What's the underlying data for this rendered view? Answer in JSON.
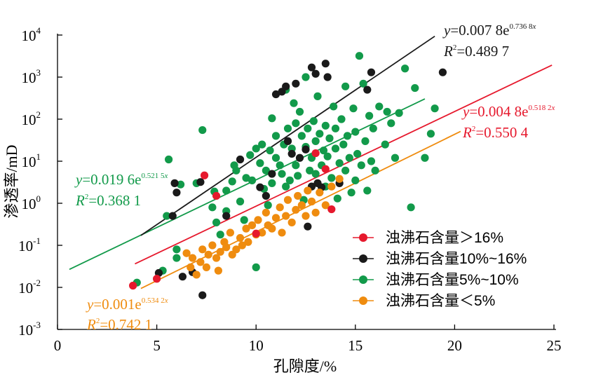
{
  "chart_data": {
    "type": "scatter",
    "x_axis": {
      "label": "孔隙度/%",
      "range": [
        0,
        25
      ],
      "ticks": [
        "0",
        "5",
        "10",
        "15",
        "20",
        "25"
      ]
    },
    "y_axis": {
      "label": "渗透率/mD",
      "scale": "log",
      "range": [
        0.001,
        10000
      ],
      "tick_bases": [
        "10",
        "10",
        "10",
        "10",
        "10",
        "10",
        "10",
        "10"
      ],
      "tick_exponents": [
        "-3",
        "-2",
        "-1",
        "0",
        "1",
        "2",
        "3",
        "4"
      ]
    },
    "series": [
      {
        "name": "浊沸石含量＞16%",
        "color": "#e6192d",
        "points": [
          [
            3.8,
            0.011
          ],
          [
            5.0,
            0.016
          ],
          [
            7.4,
            4.6
          ],
          [
            8.0,
            1.5
          ],
          [
            10.0,
            0.19
          ],
          [
            13.0,
            15.5
          ],
          [
            13.5,
            6.5
          ],
          [
            13.8,
            0.72
          ]
        ],
        "fit": {
          "a": 0.0048,
          "b": 0.5182,
          "x_range": [
            3.9,
            24.9
          ],
          "eq_prefix": "y",
          "eq_main": "=0.004 8e",
          "eq_exp": "0.518 2",
          "eq_x": "x",
          "r2_prefix": "R",
          "r2_sup": "2",
          "r2_value": "=0.550 4"
        }
      },
      {
        "name": "浊沸石含量10%~16%",
        "color": "#1a1a1a",
        "points": [
          [
            5.1,
            0.022
          ],
          [
            5.8,
            0.5
          ],
          [
            5.9,
            3.0
          ],
          [
            6.0,
            1.8
          ],
          [
            6.3,
            0.018
          ],
          [
            6.8,
            0.023
          ],
          [
            7.2,
            3.2
          ],
          [
            7.3,
            0.0065
          ],
          [
            8.5,
            0.5
          ],
          [
            9.2,
            11
          ],
          [
            10.2,
            2.4
          ],
          [
            10.5,
            1.5
          ],
          [
            10.8,
            5
          ],
          [
            11.0,
            390
          ],
          [
            11.3,
            450
          ],
          [
            11.5,
            600
          ],
          [
            11.6,
            30
          ],
          [
            11.8,
            15
          ],
          [
            12.0,
            700
          ],
          [
            12.2,
            12
          ],
          [
            12.5,
            19
          ],
          [
            12.6,
            0.28
          ],
          [
            12.8,
            2.5
          ],
          [
            12.8,
            1700
          ],
          [
            13.0,
            1200
          ],
          [
            13.1,
            3.0
          ],
          [
            13.3,
            2.4
          ],
          [
            13.5,
            2100
          ],
          [
            13.6,
            1000
          ],
          [
            14.2,
            3.0
          ],
          [
            15.6,
            500
          ],
          [
            15.8,
            1300
          ],
          [
            19.4,
            1300
          ]
        ],
        "fit": {
          "a": 0.0078,
          "b": 0.7368,
          "x_range": [
            4.2,
            19.0
          ],
          "eq_prefix": "y",
          "eq_main": "=0.007 8e",
          "eq_exp": "0.736 8",
          "eq_x": "x",
          "r2_prefix": "R",
          "r2_sup": "2",
          "r2_value": "=0.489 7"
        }
      },
      {
        "name": "浊沸石含量5%~10%",
        "color": "#129a4a",
        "points": [
          [
            4.0,
            0.013
          ],
          [
            5.3,
            0.025
          ],
          [
            5.5,
            0.5
          ],
          [
            5.6,
            11
          ],
          [
            6.0,
            0.08
          ],
          [
            6.0,
            0.05
          ],
          [
            6.2,
            2.8
          ],
          [
            7.0,
            3.0
          ],
          [
            7.3,
            55
          ],
          [
            7.8,
            0.8
          ],
          [
            7.9,
            1.9
          ],
          [
            8.0,
            0.35
          ],
          [
            8.2,
            0.18
          ],
          [
            8.5,
            0.65
          ],
          [
            8.5,
            2.0
          ],
          [
            8.8,
            3.3
          ],
          [
            8.9,
            8.0
          ],
          [
            9.0,
            6.0
          ],
          [
            9.2,
            1.1
          ],
          [
            9.4,
            0.4
          ],
          [
            9.5,
            4.0
          ],
          [
            9.7,
            14
          ],
          [
            9.8,
            3.5
          ],
          [
            10.0,
            20
          ],
          [
            10.0,
            0.03
          ],
          [
            10.2,
            9
          ],
          [
            10.3,
            25
          ],
          [
            10.4,
            2.2
          ],
          [
            10.5,
            6
          ],
          [
            10.6,
            0.9
          ],
          [
            10.7,
            18
          ],
          [
            10.8,
            105
          ],
          [
            10.8,
            3
          ],
          [
            11.0,
            12
          ],
          [
            11.0,
            40
          ],
          [
            11.2,
            8
          ],
          [
            11.3,
            5
          ],
          [
            11.4,
            25
          ],
          [
            11.5,
            2.5
          ],
          [
            11.5,
            500
          ],
          [
            11.6,
            60
          ],
          [
            11.7,
            3.5
          ],
          [
            11.8,
            20
          ],
          [
            11.9,
            240
          ],
          [
            12.0,
            80
          ],
          [
            12.0,
            8
          ],
          [
            12.1,
            4.5
          ],
          [
            12.2,
            150
          ],
          [
            12.3,
            40
          ],
          [
            12.4,
            1.2
          ],
          [
            12.5,
            22
          ],
          [
            12.5,
            1000
          ],
          [
            12.6,
            60
          ],
          [
            12.7,
            6
          ],
          [
            12.8,
            12
          ],
          [
            12.9,
            90
          ],
          [
            13.0,
            30
          ],
          [
            13.0,
            5
          ],
          [
            13.1,
            350
          ],
          [
            13.2,
            45
          ],
          [
            13.3,
            8
          ],
          [
            13.4,
            18
          ],
          [
            13.5,
            70
          ],
          [
            13.5,
            2.5
          ],
          [
            13.6,
            13
          ],
          [
            13.7,
            35
          ],
          [
            13.8,
            4
          ],
          [
            13.9,
            200
          ],
          [
            14.0,
            20
          ],
          [
            14.0,
            60
          ],
          [
            14.1,
            1.3
          ],
          [
            14.2,
            9
          ],
          [
            14.3,
            100
          ],
          [
            14.4,
            25
          ],
          [
            14.5,
            6
          ],
          [
            14.5,
            600
          ],
          [
            14.6,
            40
          ],
          [
            14.7,
            12
          ],
          [
            14.8,
            1.8
          ],
          [
            14.9,
            180
          ],
          [
            15.0,
            50
          ],
          [
            15.0,
            3.5
          ],
          [
            15.1,
            15
          ],
          [
            15.2,
            3200
          ],
          [
            15.3,
            8
          ],
          [
            15.4,
            700
          ],
          [
            15.5,
            30
          ],
          [
            15.6,
            2.0
          ],
          [
            15.7,
            120
          ],
          [
            15.8,
            10
          ],
          [
            15.9,
            60
          ],
          [
            16.0,
            6
          ],
          [
            16.2,
            200
          ],
          [
            16.5,
            25
          ],
          [
            16.6,
            150
          ],
          [
            16.8,
            80
          ],
          [
            17.0,
            12
          ],
          [
            17.2,
            140
          ],
          [
            17.5,
            1600
          ],
          [
            17.8,
            0.8
          ],
          [
            18.0,
            550
          ],
          [
            18.5,
            12
          ],
          [
            18.8,
            45
          ],
          [
            19.0,
            180
          ]
        ],
        "fit": {
          "a": 0.0196,
          "b": 0.5215,
          "x_range": [
            0.6,
            18.5
          ],
          "eq_prefix": "y",
          "eq_main": "=0.019 6e",
          "eq_exp": "0.521 5",
          "eq_x": "x",
          "r2_prefix": "R",
          "r2_sup": "2",
          "r2_value": "=0.368 1"
        }
      },
      {
        "name": "浊沸石含量＜5%",
        "color": "#ef8c0f",
        "points": [
          [
            6.5,
            0.065
          ],
          [
            6.7,
            0.03
          ],
          [
            6.8,
            0.05
          ],
          [
            7.0,
            0.02
          ],
          [
            7.2,
            0.04
          ],
          [
            7.3,
            0.08
          ],
          [
            7.5,
            0.03
          ],
          [
            7.6,
            0.06
          ],
          [
            7.8,
            0.1
          ],
          [
            8.0,
            0.05
          ],
          [
            8.1,
            0.025
          ],
          [
            8.2,
            0.07
          ],
          [
            8.4,
            0.12
          ],
          [
            8.5,
            0.09
          ],
          [
            8.7,
            0.2
          ],
          [
            8.8,
            0.06
          ],
          [
            9.0,
            0.08
          ],
          [
            9.2,
            0.15
          ],
          [
            9.3,
            0.1
          ],
          [
            9.5,
            0.25
          ],
          [
            9.6,
            0.12
          ],
          [
            9.8,
            0.3
          ],
          [
            10.0,
            0.18
          ],
          [
            10.1,
            0.4
          ],
          [
            10.3,
            0.2
          ],
          [
            10.5,
            0.6
          ],
          [
            10.6,
            0.3
          ],
          [
            10.8,
            0.25
          ],
          [
            11.0,
            0.45
          ],
          [
            11.2,
            0.8
          ],
          [
            11.3,
            0.2
          ],
          [
            11.5,
            0.5
          ],
          [
            11.6,
            1.2
          ],
          [
            11.8,
            0.35
          ],
          [
            12.0,
            0.7
          ],
          [
            12.1,
            1.5
          ],
          [
            12.3,
            0.9
          ],
          [
            12.5,
            0.5
          ],
          [
            12.6,
            2.0
          ],
          [
            12.8,
            1.1
          ],
          [
            13.0,
            0.6
          ],
          [
            13.2,
            1.8
          ],
          [
            13.5,
            0.9
          ],
          [
            13.8,
            2.5
          ],
          [
            14.2,
            3.8
          ]
        ],
        "fit": {
          "a": 0.001,
          "b": 0.5342,
          "x_range": [
            4.2,
            20.3
          ],
          "eq_prefix": "y",
          "eq_main": "=0.001e",
          "eq_exp": "0.534 2",
          "eq_x": "x",
          "r2_prefix": "R",
          "r2_sup": "2",
          "r2_value": "=0.742 1"
        }
      }
    ],
    "legend_position": "lower-right"
  }
}
